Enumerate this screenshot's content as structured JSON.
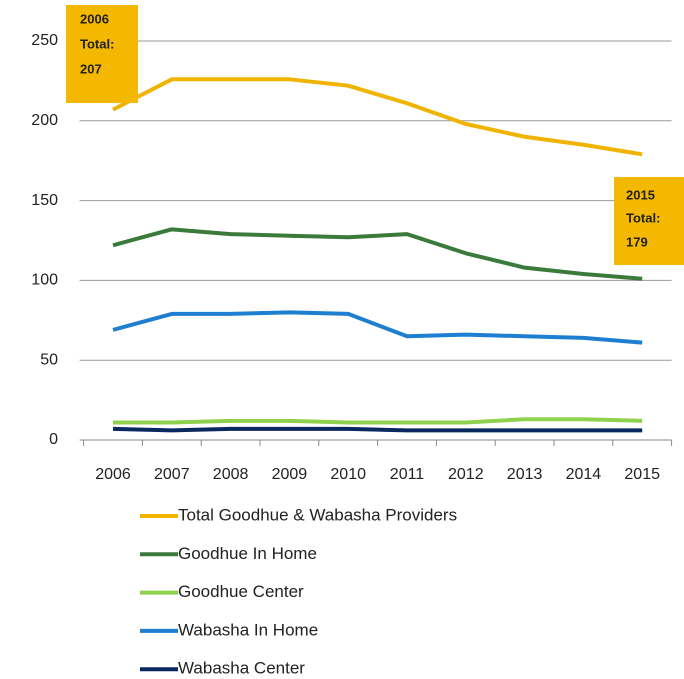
{
  "chart_data": {
    "type": "line",
    "categories": [
      "2006",
      "2007",
      "2008",
      "2009",
      "2010",
      "2011",
      "2012",
      "2013",
      "2014",
      "2015"
    ],
    "series": [
      {
        "name": "Total Goodhue & Wabasha Providers",
        "color": "#f0b400",
        "values": [
          207,
          226,
          226,
          226,
          222,
          211,
          198,
          190,
          185,
          179
        ]
      },
      {
        "name": "Goodhue In Home",
        "color": "#3a7a3a",
        "values": [
          122,
          132,
          129,
          128,
          127,
          129,
          117,
          108,
          104,
          101
        ]
      },
      {
        "name": "Goodhue Center",
        "color": "#8fd14f",
        "values": [
          11,
          11,
          12,
          12,
          11,
          11,
          11,
          13,
          13,
          12
        ]
      },
      {
        "name": "Wabasha In Home",
        "color": "#1e7fd0",
        "values": [
          69,
          79,
          79,
          80,
          79,
          65,
          66,
          65,
          64,
          61
        ]
      },
      {
        "name": "Wabasha Center",
        "color": "#0a2860",
        "values": [
          7,
          6,
          7,
          7,
          7,
          6,
          6,
          6,
          6,
          6
        ]
      }
    ],
    "ylim": [
      0,
      250
    ],
    "yticks": [
      0,
      50,
      100,
      150,
      200,
      250
    ],
    "grid": true,
    "legend": "bottom",
    "annotations": [
      {
        "lines": [
          "2006",
          "Total:",
          "207"
        ],
        "color": "#f5b800"
      },
      {
        "lines": [
          "2015",
          "Total:",
          "179"
        ],
        "color": "#f5b800"
      }
    ]
  }
}
